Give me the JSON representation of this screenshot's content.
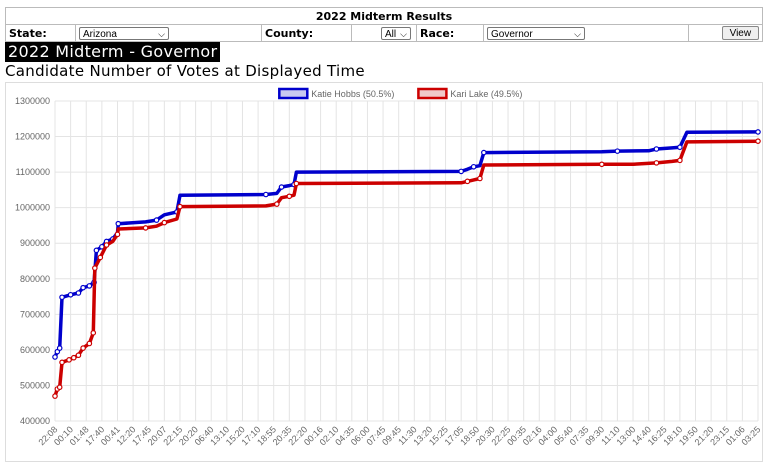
{
  "header": {
    "title": "2022 Midterm Results",
    "state_label": "State:",
    "state_value": "Arizona",
    "county_label": "County:",
    "county_value": "All",
    "race_label": "Race:",
    "race_value": "Governor",
    "view_button": "View"
  },
  "page": {
    "heading": "2022 Midterm - Governor",
    "subheading": "Candidate Number of Votes at Displayed Time"
  },
  "chart_data": {
    "type": "line",
    "title": "",
    "xlabel": "",
    "ylabel": "",
    "ylim": [
      400000,
      1300000
    ],
    "ytick_step": 100000,
    "legend_position": "top",
    "grid": true,
    "x": [
      "22:08",
      "00:10",
      "01:48",
      "17:40",
      "00:41",
      "12:20",
      "17:45",
      "20:07",
      "22:15",
      "20:20",
      "06:40",
      "13:10",
      "15:20",
      "17:10",
      "18:55",
      "20:35",
      "22:20",
      "00:16",
      "02:10",
      "04:35",
      "06:00",
      "07:45",
      "09:45",
      "11:30",
      "13:20",
      "15:25",
      "17:05",
      "18:50",
      "20:30",
      "22:25",
      "00:35",
      "02:16",
      "04:00",
      "05:40",
      "07:35",
      "09:30",
      "11:10",
      "13:00",
      "14:40",
      "16:25",
      "18:10",
      "19:50",
      "21:20",
      "23:15",
      "01:06",
      "03:25"
    ],
    "series": [
      {
        "name": "Katie Hobbs (50.5%)",
        "color": "#0000cc",
        "points": [
          [
            0.0,
            580000
          ],
          [
            0.15,
            595000
          ],
          [
            0.3,
            605000
          ],
          [
            0.45,
            748000
          ],
          [
            1.0,
            755000
          ],
          [
            1.5,
            760000
          ],
          [
            1.8,
            775000
          ],
          [
            2.2,
            780000
          ],
          [
            2.5,
            790000
          ],
          [
            2.65,
            880000
          ],
          [
            3.0,
            890000
          ],
          [
            3.3,
            905000
          ],
          [
            3.7,
            912000
          ],
          [
            4.0,
            930000
          ],
          [
            4.05,
            955000
          ],
          [
            5.8,
            960000
          ],
          [
            6.5,
            965000
          ],
          [
            7.0,
            980000
          ],
          [
            7.8,
            988000
          ],
          [
            8.0,
            1035000
          ],
          [
            13.5,
            1037000
          ],
          [
            14.2,
            1040000
          ],
          [
            14.5,
            1058000
          ],
          [
            15.0,
            1062000
          ],
          [
            15.3,
            1065000
          ],
          [
            15.45,
            1100000
          ],
          [
            26.0,
            1102000
          ],
          [
            26.4,
            1108000
          ],
          [
            26.8,
            1115000
          ],
          [
            27.2,
            1118000
          ],
          [
            27.45,
            1155000
          ],
          [
            35.0,
            1157000
          ],
          [
            36.0,
            1159000
          ],
          [
            38.0,
            1160000
          ],
          [
            38.5,
            1165000
          ],
          [
            39.5,
            1168000
          ],
          [
            40.0,
            1170000
          ],
          [
            40.45,
            1212000
          ],
          [
            45.0,
            1213000
          ]
        ]
      },
      {
        "name": "Kari Lake (49.5%)",
        "color": "#cc0000",
        "points": [
          [
            0.0,
            470000
          ],
          [
            0.15,
            490000
          ],
          [
            0.3,
            495000
          ],
          [
            0.45,
            565000
          ],
          [
            0.9,
            572000
          ],
          [
            1.2,
            578000
          ],
          [
            1.5,
            585000
          ],
          [
            1.8,
            605000
          ],
          [
            2.2,
            618000
          ],
          [
            2.45,
            648000
          ],
          [
            2.55,
            830000
          ],
          [
            2.9,
            860000
          ],
          [
            3.3,
            895000
          ],
          [
            3.7,
            905000
          ],
          [
            4.0,
            925000
          ],
          [
            4.05,
            940000
          ],
          [
            5.8,
            943000
          ],
          [
            6.5,
            948000
          ],
          [
            7.0,
            958000
          ],
          [
            7.8,
            968000
          ],
          [
            8.0,
            1003000
          ],
          [
            13.5,
            1005000
          ],
          [
            14.2,
            1010000
          ],
          [
            14.5,
            1028000
          ],
          [
            15.0,
            1032000
          ],
          [
            15.3,
            1035000
          ],
          [
            15.45,
            1068000
          ],
          [
            26.0,
            1070000
          ],
          [
            26.4,
            1074000
          ],
          [
            26.8,
            1078000
          ],
          [
            27.2,
            1082000
          ],
          [
            27.45,
            1120000
          ],
          [
            35.0,
            1122000
          ],
          [
            37.0,
            1122000
          ],
          [
            38.5,
            1126000
          ],
          [
            39.5,
            1130000
          ],
          [
            40.0,
            1133000
          ],
          [
            40.45,
            1185000
          ],
          [
            45.0,
            1187000
          ]
        ]
      }
    ]
  }
}
